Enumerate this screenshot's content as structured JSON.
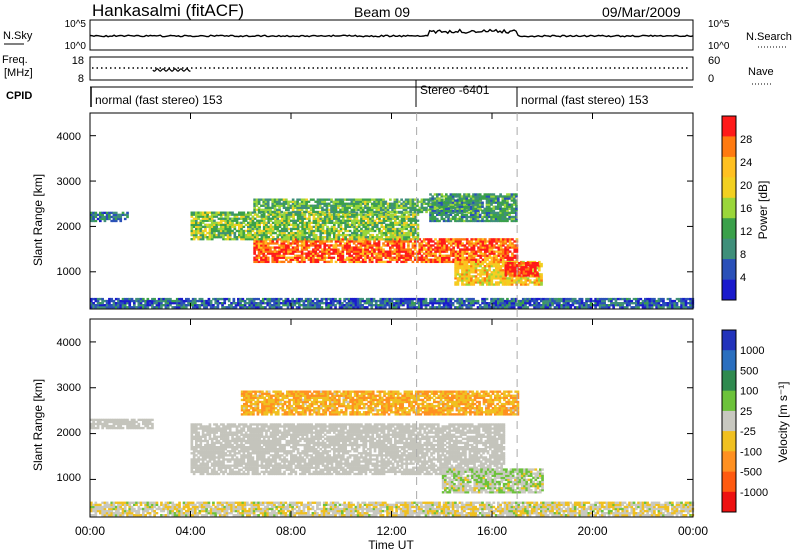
{
  "header": {
    "station": "Hankasalmi (fitACF)",
    "beam": "Beam 09",
    "date": "09/Mar/2009"
  },
  "top_panels": {
    "nsky_label": "N.Sky",
    "nsky_ticks": [
      "10^5",
      "10^0"
    ],
    "nsearch_label": "N.Search",
    "nsearch_ticks": [
      "10^5",
      "10^0"
    ],
    "freq_label_1": "Freq.",
    "freq_label_2": "[MHz]",
    "freq_ticks": [
      "18",
      "8"
    ],
    "nave_label": "Nave",
    "nave_ticks": [
      "60",
      "0"
    ],
    "cpid_label": "CPID",
    "cpid_segments": [
      {
        "label": "normal (fast stereo) 153",
        "start": 0,
        "end": 13
      },
      {
        "label": "Stereo -6401",
        "start": 13,
        "end": 17
      },
      {
        "label": "normal (fast stereo) 153",
        "start": 17,
        "end": 24
      }
    ]
  },
  "power_panel": {
    "ylabel": "Slant Range [km]",
    "yticks": [
      "4000",
      "3000",
      "2000",
      "1000"
    ],
    "colorbar_label": "Power [dB]",
    "colorbar_ticks": [
      "28",
      "24",
      "20",
      "16",
      "12",
      "8",
      "4"
    ],
    "colorbar_colors": [
      "#ff1a1a",
      "#ff7a10",
      "#ffc020",
      "#f2d020",
      "#9ad63a",
      "#3aa04a",
      "#3f8f7a",
      "#2a50b8",
      "#1a1acc"
    ]
  },
  "velocity_panel": {
    "ylabel": "Slant Range [km]",
    "yticks": [
      "4000",
      "3000",
      "2000",
      "1000"
    ],
    "colorbar_label": "Velocity [m s⁻¹]",
    "colorbar_ticks": [
      "1000",
      "500",
      "100",
      "25",
      "-25",
      "-100",
      "-500",
      "-1000"
    ],
    "colorbar_colors": [
      "#2233bb",
      "#2a6fbf",
      "#2f8a4f",
      "#6cc23a",
      "#c8c8c0",
      "#f0c020",
      "#ff9020",
      "#ff5a10",
      "#ee1111"
    ],
    "ground_scatter_color": "#c4c4bc"
  },
  "xaxis": {
    "ticks": [
      "00:00",
      "04:00",
      "08:00",
      "12:00",
      "16:00",
      "20:00",
      "00:00"
    ],
    "label": "Time UT"
  },
  "chart_data": {
    "type": "heatmap",
    "x_range_hours": [
      0,
      24
    ],
    "y_range_km": [
      180,
      4500
    ],
    "ylabel": "Slant Range [km]",
    "xlabel": "Time UT",
    "mode_change_times_hours": [
      13,
      17
    ],
    "panels": [
      {
        "name": "Power",
        "units": "dB",
        "colorbar_range": [
          0,
          30
        ],
        "regions": [
          {
            "t": [
              6.5,
              17.0
            ],
            "range_km": [
              1200,
              1700
            ],
            "value": 26
          },
          {
            "t": [
              4.0,
              13.0
            ],
            "range_km": [
              1700,
              2300
            ],
            "value": 14
          },
          {
            "t": [
              6.5,
              15.5
            ],
            "range_km": [
              2300,
              2600
            ],
            "value": 12
          },
          {
            "t": [
              0.0,
              1.5
            ],
            "range_km": [
              2100,
              2300
            ],
            "value": 8
          },
          {
            "t": [
              13.5,
              17.0
            ],
            "range_km": [
              2100,
              2700
            ],
            "value": 10
          },
          {
            "t": [
              14.5,
              18.0
            ],
            "range_km": [
              700,
              1200
            ],
            "value": 20
          },
          {
            "t": [
              16.5,
              17.8
            ],
            "range_km": [
              900,
              1200
            ],
            "value": 30
          },
          {
            "t": [
              0.0,
              24.0
            ],
            "range_km": [
              200,
              400
            ],
            "value": 6
          }
        ]
      },
      {
        "name": "Velocity",
        "units": "m s-1",
        "colorbar_range": [
          -1000,
          1000
        ],
        "regions": [
          {
            "t": [
              4.0,
              16.5
            ],
            "range_km": [
              1100,
              2200
            ],
            "value": 0,
            "ground_scatter": true
          },
          {
            "t": [
              0.0,
              2.5
            ],
            "range_km": [
              2100,
              2300
            ],
            "value": 0,
            "ground_scatter": true
          },
          {
            "t": [
              6.0,
              17.0
            ],
            "range_km": [
              2400,
              2900
            ],
            "value": -300
          },
          {
            "t": [
              14.0,
              18.0
            ],
            "range_km": [
              700,
              1200
            ],
            "value": 50
          },
          {
            "t": [
              0.0,
              24.0
            ],
            "range_km": [
              200,
              500
            ],
            "value": -50
          }
        ]
      }
    ]
  }
}
